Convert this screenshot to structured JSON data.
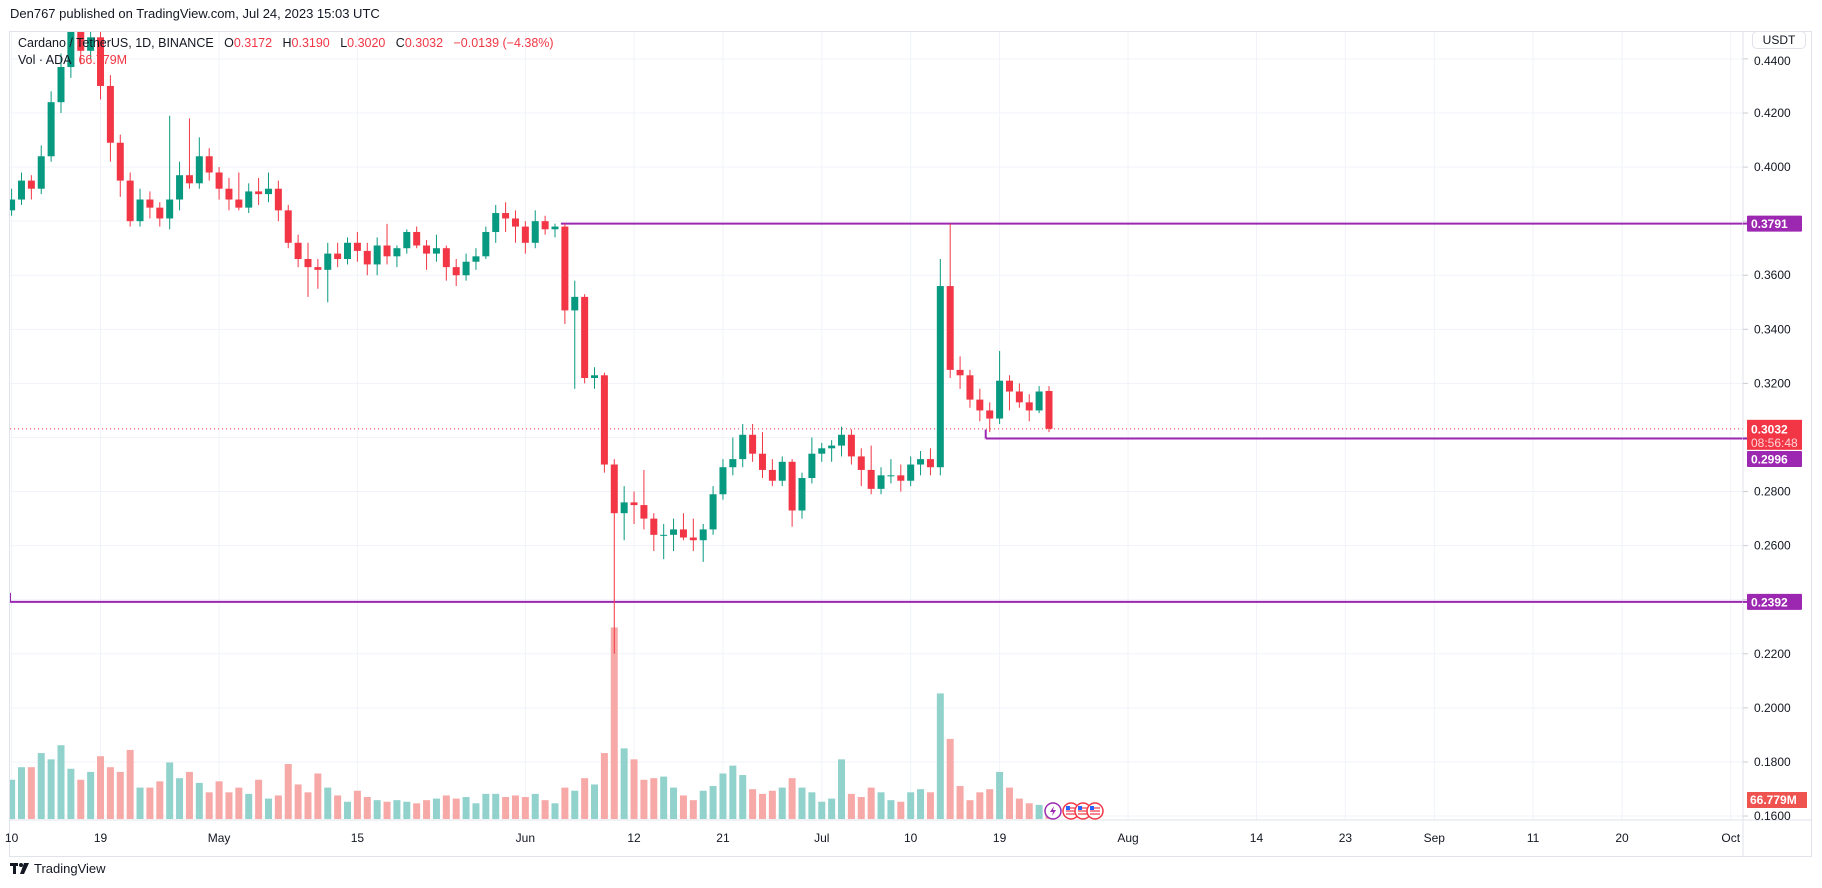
{
  "header": {
    "publisher": "Den767 published on TradingView.com, Jul 24, 2023 15:03 UTC"
  },
  "legend": {
    "symbol": "Cardano / TetherUS, 1D, BINANCE",
    "o_label": "O",
    "o": "0.3172",
    "h_label": "H",
    "h": "0.3190",
    "l_label": "L",
    "l": "0.3020",
    "c_label": "C",
    "c": "0.3032",
    "change": "−0.0139 (−4.38%)",
    "vol_label": "Vol · ADA",
    "vol_value": "66.779M"
  },
  "price_axis": {
    "currency_button": "USDT"
  },
  "colors": {
    "up": "#089981",
    "down": "#f23645",
    "vol_up": "#92d2cc",
    "vol_down": "#f7a9a7",
    "level": "#9c27b0",
    "grid": "#f0f3fa"
  },
  "branding": {
    "logo_text": "TradingView"
  },
  "event_icons": [
    "lightning-icon",
    "us-flag-icon",
    "us-flag-icon",
    "us-flag-icon"
  ],
  "chart_data": {
    "type": "candlestick",
    "symbol": "ADAUSDT",
    "interval": "1D",
    "ylim": [
      0.155,
      0.445
    ],
    "y_ticks": [
      "0.1600",
      "0.1800",
      "0.2000",
      "0.2200",
      "0.2400",
      "0.2600",
      "0.2800",
      "0.3000",
      "0.3200",
      "0.3400",
      "0.3600",
      "0.3800",
      "0.4000",
      "0.4200",
      "0.4400"
    ],
    "y_tick_labels": {
      "0.1600": "0.1600",
      "0.1800": "0.1800",
      "0.2000": "0.2000",
      "0.2200": "0.2200",
      "0.2600": "0.2600",
      "0.2800": "0.2800",
      "0.3400": "0.3400",
      "0.3600": "0.3600",
      "0.3200": "0.3200",
      "0.4000": "0.4000",
      "0.4200": "0.4200",
      "0.4400": "0.4400"
    },
    "x_range": [
      "2023-04-09",
      "2023-10-05"
    ],
    "x_ticks": [
      {
        "date": "2023-04-10",
        "label": "10"
      },
      {
        "date": "2023-04-19",
        "label": "19"
      },
      {
        "date": "2023-05-01",
        "label": "May"
      },
      {
        "date": "2023-05-15",
        "label": "15"
      },
      {
        "date": "2023-06-01",
        "label": "Jun"
      },
      {
        "date": "2023-06-12",
        "label": "12"
      },
      {
        "date": "2023-06-21",
        "label": "21"
      },
      {
        "date": "2023-07-01",
        "label": "Jul"
      },
      {
        "date": "2023-07-10",
        "label": "10"
      },
      {
        "date": "2023-07-19",
        "label": "19"
      },
      {
        "date": "2023-08-01",
        "label": "Aug"
      },
      {
        "date": "2023-08-14",
        "label": "14"
      },
      {
        "date": "2023-08-23",
        "label": "23"
      },
      {
        "date": "2023-09-01",
        "label": "Sep"
      },
      {
        "date": "2023-09-11",
        "label": "11"
      },
      {
        "date": "2023-09-20",
        "label": "20"
      },
      {
        "date": "2023-10-01",
        "label": "Oct"
      }
    ],
    "grid": true,
    "levels": [
      {
        "price": 0.3791,
        "label": "0.3791",
        "from": "2023-06-05"
      },
      {
        "price": 0.2996,
        "label": "0.2996",
        "from": "2023-07-18"
      },
      {
        "price": 0.2392,
        "label": "0.2392",
        "from": null
      }
    ],
    "last_price": {
      "price": 0.3032,
      "label": "0.3032",
      "countdown": "08:56:48"
    },
    "volume_unit": "M",
    "columns": [
      "date",
      "open",
      "high",
      "low",
      "close",
      "volume"
    ],
    "candles": [
      [
        "2023-04-10",
        0.384,
        0.392,
        0.382,
        0.388,
        250
      ],
      [
        "2023-04-11",
        0.388,
        0.398,
        0.386,
        0.395,
        330
      ],
      [
        "2023-04-12",
        0.395,
        0.397,
        0.388,
        0.392,
        330
      ],
      [
        "2023-04-13",
        0.392,
        0.408,
        0.39,
        0.404,
        420
      ],
      [
        "2023-04-14",
        0.404,
        0.428,
        0.402,
        0.424,
        380
      ],
      [
        "2023-04-15",
        0.424,
        0.442,
        0.42,
        0.437,
        470
      ],
      [
        "2023-04-16",
        0.437,
        0.458,
        0.433,
        0.45,
        320
      ],
      [
        "2023-04-17",
        0.45,
        0.462,
        0.438,
        0.443,
        250
      ],
      [
        "2023-04-18",
        0.443,
        0.455,
        0.44,
        0.448,
        300
      ],
      [
        "2023-04-19",
        0.448,
        0.452,
        0.425,
        0.43,
        400
      ],
      [
        "2023-04-20",
        0.43,
        0.434,
        0.402,
        0.409,
        330
      ],
      [
        "2023-04-21",
        0.409,
        0.412,
        0.389,
        0.395,
        300
      ],
      [
        "2023-04-22",
        0.395,
        0.398,
        0.378,
        0.38,
        440
      ],
      [
        "2023-04-23",
        0.38,
        0.392,
        0.378,
        0.388,
        200
      ],
      [
        "2023-04-24",
        0.388,
        0.391,
        0.381,
        0.385,
        200
      ],
      [
        "2023-04-25",
        0.385,
        0.387,
        0.378,
        0.381,
        240
      ],
      [
        "2023-04-26",
        0.381,
        0.419,
        0.377,
        0.388,
        360
      ],
      [
        "2023-04-27",
        0.388,
        0.402,
        0.384,
        0.397,
        260
      ],
      [
        "2023-04-28",
        0.397,
        0.418,
        0.392,
        0.394,
        300
      ],
      [
        "2023-04-29",
        0.394,
        0.411,
        0.392,
        0.404,
        230
      ],
      [
        "2023-04-30",
        0.404,
        0.407,
        0.395,
        0.398,
        170
      ],
      [
        "2023-05-01",
        0.398,
        0.4,
        0.388,
        0.392,
        240
      ],
      [
        "2023-05-02",
        0.392,
        0.396,
        0.384,
        0.388,
        170
      ],
      [
        "2023-05-03",
        0.388,
        0.398,
        0.384,
        0.385,
        200
      ],
      [
        "2023-05-04",
        0.385,
        0.394,
        0.383,
        0.391,
        160
      ],
      [
        "2023-05-05",
        0.391,
        0.396,
        0.386,
        0.39,
        250
      ],
      [
        "2023-05-06",
        0.39,
        0.398,
        0.387,
        0.392,
        130
      ],
      [
        "2023-05-07",
        0.392,
        0.395,
        0.38,
        0.384,
        150
      ],
      [
        "2023-05-08",
        0.384,
        0.386,
        0.37,
        0.372,
        350
      ],
      [
        "2023-05-09",
        0.372,
        0.375,
        0.363,
        0.366,
        220
      ],
      [
        "2023-05-10",
        0.366,
        0.372,
        0.352,
        0.363,
        170
      ],
      [
        "2023-05-11",
        0.363,
        0.366,
        0.355,
        0.362,
        290
      ],
      [
        "2023-05-12",
        0.362,
        0.372,
        0.35,
        0.368,
        200
      ],
      [
        "2023-05-13",
        0.368,
        0.372,
        0.363,
        0.366,
        150
      ],
      [
        "2023-05-14",
        0.366,
        0.374,
        0.364,
        0.372,
        110
      ],
      [
        "2023-05-15",
        0.372,
        0.376,
        0.365,
        0.369,
        180
      ],
      [
        "2023-05-16",
        0.369,
        0.372,
        0.36,
        0.364,
        140
      ],
      [
        "2023-05-17",
        0.364,
        0.374,
        0.36,
        0.371,
        120
      ],
      [
        "2023-05-18",
        0.371,
        0.379,
        0.364,
        0.367,
        110
      ],
      [
        "2023-05-19",
        0.367,
        0.371,
        0.363,
        0.37,
        120
      ],
      [
        "2023-05-20",
        0.37,
        0.377,
        0.368,
        0.376,
        110
      ],
      [
        "2023-05-21",
        0.376,
        0.378,
        0.37,
        0.371,
        100
      ],
      [
        "2023-05-22",
        0.371,
        0.373,
        0.362,
        0.368,
        120
      ],
      [
        "2023-05-23",
        0.368,
        0.375,
        0.365,
        0.37,
        130
      ],
      [
        "2023-05-24",
        0.37,
        0.371,
        0.358,
        0.363,
        150
      ],
      [
        "2023-05-25",
        0.363,
        0.366,
        0.356,
        0.36,
        130
      ],
      [
        "2023-05-26",
        0.36,
        0.368,
        0.358,
        0.365,
        140
      ],
      [
        "2023-05-27",
        0.365,
        0.37,
        0.362,
        0.367,
        100
      ],
      [
        "2023-05-28",
        0.367,
        0.378,
        0.366,
        0.376,
        160
      ],
      [
        "2023-05-29",
        0.376,
        0.386,
        0.372,
        0.383,
        160
      ],
      [
        "2023-05-30",
        0.383,
        0.387,
        0.376,
        0.381,
        140
      ],
      [
        "2023-05-31",
        0.381,
        0.384,
        0.372,
        0.378,
        150
      ],
      [
        "2023-06-01",
        0.378,
        0.38,
        0.368,
        0.372,
        140
      ],
      [
        "2023-06-02",
        0.372,
        0.384,
        0.37,
        0.38,
        160
      ],
      [
        "2023-06-03",
        0.38,
        0.382,
        0.375,
        0.377,
        120
      ],
      [
        "2023-06-04",
        0.377,
        0.3791,
        0.374,
        0.378,
        100
      ],
      [
        "2023-06-05",
        0.378,
        0.379,
        0.342,
        0.347,
        200
      ],
      [
        "2023-06-06",
        0.347,
        0.358,
        0.318,
        0.352,
        180
      ],
      [
        "2023-06-07",
        0.352,
        0.353,
        0.32,
        0.322,
        260
      ],
      [
        "2023-06-08",
        0.322,
        0.326,
        0.318,
        0.323,
        220
      ],
      [
        "2023-06-09",
        0.323,
        0.324,
        0.287,
        0.29,
        420
      ],
      [
        "2023-06-10",
        0.29,
        0.292,
        0.22,
        0.272,
        1220
      ],
      [
        "2023-06-11",
        0.272,
        0.282,
        0.262,
        0.276,
        450
      ],
      [
        "2023-06-12",
        0.276,
        0.28,
        0.268,
        0.275,
        380
      ],
      [
        "2023-06-13",
        0.275,
        0.288,
        0.266,
        0.27,
        250
      ],
      [
        "2023-06-14",
        0.27,
        0.272,
        0.258,
        0.264,
        260
      ],
      [
        "2023-06-15",
        0.264,
        0.268,
        0.255,
        0.264,
        270
      ],
      [
        "2023-06-16",
        0.264,
        0.27,
        0.258,
        0.266,
        200
      ],
      [
        "2023-06-17",
        0.266,
        0.272,
        0.262,
        0.263,
        150
      ],
      [
        "2023-06-18",
        0.263,
        0.27,
        0.258,
        0.262,
        120
      ],
      [
        "2023-06-19",
        0.262,
        0.268,
        0.254,
        0.266,
        180
      ],
      [
        "2023-06-20",
        0.266,
        0.282,
        0.264,
        0.279,
        210
      ],
      [
        "2023-06-21",
        0.279,
        0.292,
        0.277,
        0.289,
        290
      ],
      [
        "2023-06-22",
        0.289,
        0.3,
        0.286,
        0.292,
        340
      ],
      [
        "2023-06-23",
        0.292,
        0.305,
        0.289,
        0.301,
        280
      ],
      [
        "2023-06-24",
        0.301,
        0.305,
        0.291,
        0.294,
        190
      ],
      [
        "2023-06-25",
        0.294,
        0.302,
        0.285,
        0.288,
        160
      ],
      [
        "2023-06-26",
        0.288,
        0.292,
        0.282,
        0.284,
        180
      ],
      [
        "2023-06-27",
        0.284,
        0.293,
        0.282,
        0.291,
        200
      ],
      [
        "2023-06-28",
        0.291,
        0.292,
        0.267,
        0.273,
        260
      ],
      [
        "2023-06-29",
        0.273,
        0.287,
        0.27,
        0.285,
        200
      ],
      [
        "2023-06-30",
        0.285,
        0.3,
        0.283,
        0.294,
        170
      ],
      [
        "2023-07-01",
        0.294,
        0.298,
        0.291,
        0.296,
        110
      ],
      [
        "2023-07-02",
        0.296,
        0.299,
        0.291,
        0.297,
        130
      ],
      [
        "2023-07-03",
        0.297,
        0.304,
        0.293,
        0.301,
        380
      ],
      [
        "2023-07-04",
        0.301,
        0.303,
        0.29,
        0.293,
        160
      ],
      [
        "2023-07-05",
        0.293,
        0.296,
        0.282,
        0.288,
        140
      ],
      [
        "2023-07-06",
        0.288,
        0.297,
        0.279,
        0.281,
        200
      ],
      [
        "2023-07-07",
        0.281,
        0.289,
        0.279,
        0.286,
        170
      ],
      [
        "2023-07-08",
        0.286,
        0.292,
        0.283,
        0.286,
        120
      ],
      [
        "2023-07-09",
        0.286,
        0.29,
        0.28,
        0.284,
        110
      ],
      [
        "2023-07-10",
        0.284,
        0.293,
        0.282,
        0.29,
        170
      ],
      [
        "2023-07-11",
        0.29,
        0.295,
        0.286,
        0.292,
        190
      ],
      [
        "2023-07-12",
        0.292,
        0.296,
        0.286,
        0.289,
        170
      ],
      [
        "2023-07-13",
        0.289,
        0.366,
        0.286,
        0.356,
        800
      ],
      [
        "2023-07-14",
        0.356,
        0.3791,
        0.322,
        0.325,
        510
      ],
      [
        "2023-07-15",
        0.325,
        0.33,
        0.318,
        0.323,
        210
      ],
      [
        "2023-07-16",
        0.323,
        0.325,
        0.311,
        0.314,
        120
      ],
      [
        "2023-07-17",
        0.314,
        0.318,
        0.306,
        0.31,
        170
      ],
      [
        "2023-07-18",
        0.31,
        0.313,
        0.302,
        0.307,
        190
      ],
      [
        "2023-07-19",
        0.307,
        0.332,
        0.305,
        0.321,
        300
      ],
      [
        "2023-07-20",
        0.321,
        0.323,
        0.31,
        0.317,
        200
      ],
      [
        "2023-07-21",
        0.317,
        0.32,
        0.311,
        0.313,
        130
      ],
      [
        "2023-07-22",
        0.313,
        0.316,
        0.306,
        0.31,
        100
      ],
      [
        "2023-07-23",
        0.31,
        0.319,
        0.309,
        0.317,
        90
      ],
      [
        "2023-07-24",
        0.3172,
        0.319,
        0.302,
        0.3032,
        66.779
      ]
    ]
  }
}
